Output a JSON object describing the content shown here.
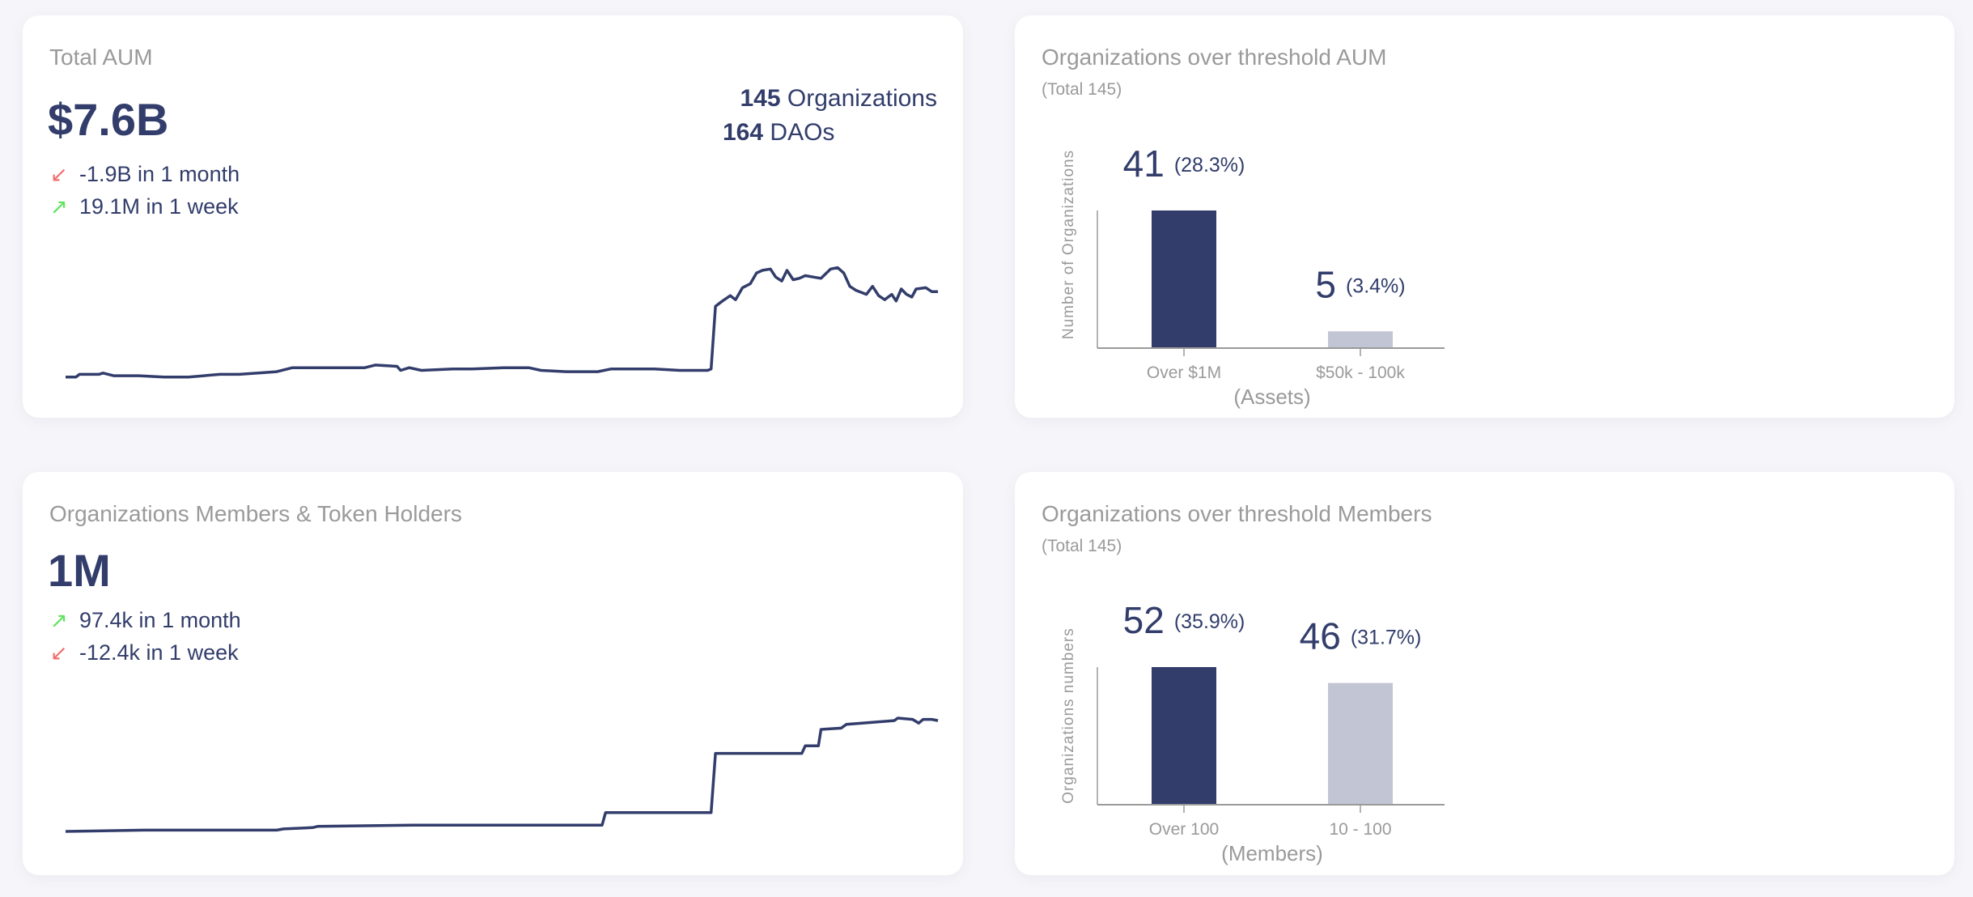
{
  "aum_card": {
    "title": "Total AUM",
    "value": "$7.6B",
    "organizations_count": "145",
    "organizations_label": "Organizations",
    "daos_count": "164",
    "daos_label": "DAOs",
    "changes": [
      {
        "direction": "down",
        "text": "-1.9B in 1 month",
        "color": "#f26d6d"
      },
      {
        "direction": "up",
        "text": "19.1M in 1 week",
        "color": "#5fe35f"
      }
    ]
  },
  "members_card": {
    "title": "Organizations Members & Token Holders",
    "value": "1M",
    "changes": [
      {
        "direction": "up",
        "text": "97.4k in 1 month",
        "color": "#5fe35f"
      },
      {
        "direction": "down",
        "text": "-12.4k in 1 week",
        "color": "#f26d6d"
      }
    ]
  },
  "aum_threshold_card": {
    "title": "Organizations over threshold AUM",
    "subtitle": "(Total 145)"
  },
  "members_threshold_card": {
    "title": "Organizations over threshold Members",
    "subtitle": "(Total 145)"
  },
  "colors": {
    "primary": "#323d6b",
    "secondary": "#c2c5d3",
    "muted": "#9a9a9a",
    "background": "#f6f6fa"
  },
  "chart_data": [
    {
      "id": "aum-line",
      "type": "line",
      "title": "Total AUM",
      "note": "relative trend, time normalized 0-100",
      "ylim": [
        0,
        8.5
      ],
      "points": [
        [
          0,
          0.2
        ],
        [
          1.2,
          0.2
        ],
        [
          1.6,
          0.4
        ],
        [
          3.8,
          0.4
        ],
        [
          4.3,
          0.5
        ],
        [
          5.5,
          0.3
        ],
        [
          8.4,
          0.3
        ],
        [
          11.3,
          0.2
        ],
        [
          14.1,
          0.2
        ],
        [
          17.7,
          0.4
        ],
        [
          19.9,
          0.4
        ],
        [
          22.1,
          0.5
        ],
        [
          24.2,
          0.6
        ],
        [
          26,
          0.9
        ],
        [
          30,
          0.9
        ],
        [
          34.3,
          0.9
        ],
        [
          35.5,
          1.1
        ],
        [
          38,
          1.0
        ],
        [
          38.4,
          0.7
        ],
        [
          39.4,
          0.9
        ],
        [
          40.8,
          0.7
        ],
        [
          44.4,
          0.8
        ],
        [
          46.6,
          0.8
        ],
        [
          50.2,
          0.9
        ],
        [
          53.1,
          0.9
        ],
        [
          54.5,
          0.7
        ],
        [
          57.4,
          0.6
        ],
        [
          61,
          0.6
        ],
        [
          62.5,
          0.8
        ],
        [
          64.6,
          0.8
        ],
        [
          67.5,
          0.8
        ],
        [
          70.4,
          0.7
        ],
        [
          73.6,
          0.7
        ],
        [
          74,
          0.8
        ],
        [
          74.5,
          5.5
        ],
        [
          75.3,
          5.9
        ],
        [
          76.2,
          6.3
        ],
        [
          76.8,
          6.0
        ],
        [
          77.6,
          6.9
        ],
        [
          78.5,
          7.2
        ],
        [
          79.2,
          8.0
        ],
        [
          79.9,
          8.2
        ],
        [
          80.8,
          8.3
        ],
        [
          81.4,
          7.7
        ],
        [
          82.1,
          7.4
        ],
        [
          82.7,
          8.2
        ],
        [
          83.4,
          7.5
        ],
        [
          84.1,
          7.6
        ],
        [
          84.8,
          7.8
        ],
        [
          85.7,
          7.7
        ],
        [
          86.6,
          7.6
        ],
        [
          87.7,
          8.3
        ],
        [
          88.5,
          8.4
        ],
        [
          89.2,
          8.0
        ],
        [
          89.9,
          7.0
        ],
        [
          90.6,
          6.7
        ],
        [
          91.8,
          6.4
        ],
        [
          92.5,
          7.0
        ],
        [
          93.2,
          6.3
        ],
        [
          93.9,
          6.0
        ],
        [
          94.7,
          6.4
        ],
        [
          95.2,
          5.9
        ],
        [
          95.8,
          6.8
        ],
        [
          96.4,
          6.4
        ],
        [
          97,
          6.2
        ],
        [
          97.5,
          6.8
        ],
        [
          98.6,
          6.9
        ],
        [
          99.3,
          6.6
        ],
        [
          100,
          6.6
        ]
      ]
    },
    {
      "id": "members-line",
      "type": "line",
      "title": "Organizations Members & Token Holders",
      "note": "relative trend, time normalized 0-100",
      "ylim": [
        0,
        9
      ],
      "points": [
        [
          0,
          0
        ],
        [
          9.1,
          0.1
        ],
        [
          24.2,
          0.1
        ],
        [
          25,
          0.2
        ],
        [
          28.3,
          0.3
        ],
        [
          28.9,
          0.4
        ],
        [
          40.1,
          0.5
        ],
        [
          61.5,
          0.5
        ],
        [
          61.9,
          1.5
        ],
        [
          74,
          1.5
        ],
        [
          74.5,
          6.2
        ],
        [
          84.4,
          6.2
        ],
        [
          84.8,
          6.8
        ],
        [
          86.3,
          6.8
        ],
        [
          86.6,
          8.1
        ],
        [
          88.9,
          8.2
        ],
        [
          89.5,
          8.5
        ],
        [
          91.3,
          8.6
        ],
        [
          95,
          8.8
        ],
        [
          95.4,
          9.0
        ],
        [
          97.1,
          8.9
        ],
        [
          97.8,
          8.6
        ],
        [
          98.3,
          8.9
        ],
        [
          99.3,
          8.9
        ],
        [
          100,
          8.8
        ]
      ]
    },
    {
      "id": "aum-bar",
      "type": "bar",
      "title": "Organizations over threshold AUM",
      "xlabel": "(Assets)",
      "ylabel": "Number of Organizations",
      "categories": [
        "Over $1M",
        "$50k - 100k"
      ],
      "values": [
        41,
        5
      ],
      "labels": [
        "41",
        "5"
      ],
      "percent_labels": [
        "(28.3%)",
        "(3.4%)"
      ],
      "ylim": [
        0,
        41
      ]
    },
    {
      "id": "members-bar",
      "type": "bar",
      "title": "Organizations over threshold Members",
      "xlabel": "(Members)",
      "ylabel": "Organizations numbers",
      "categories": [
        "Over 100",
        "10 - 100"
      ],
      "values": [
        52,
        46
      ],
      "labels": [
        "52",
        "46"
      ],
      "percent_labels": [
        "(35.9%)",
        "(31.7%)"
      ],
      "ylim": [
        0,
        52
      ]
    }
  ]
}
